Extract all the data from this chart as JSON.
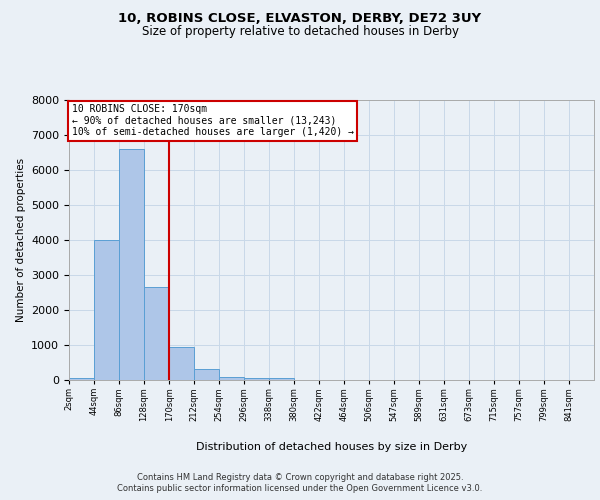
{
  "title_line1": "10, ROBINS CLOSE, ELVASTON, DERBY, DE72 3UY",
  "title_line2": "Size of property relative to detached houses in Derby",
  "xlabel": "Distribution of detached houses by size in Derby",
  "ylabel": "Number of detached properties",
  "bar_edges": [
    2,
    44,
    86,
    128,
    170,
    212,
    254,
    296,
    338,
    380,
    422,
    464,
    506,
    547,
    589,
    631,
    673,
    715,
    757,
    799,
    841
  ],
  "bar_heights": [
    50,
    4000,
    6600,
    2650,
    950,
    320,
    100,
    60,
    50,
    0,
    0,
    0,
    0,
    0,
    0,
    0,
    0,
    0,
    0,
    0,
    0
  ],
  "bar_color": "#aec6e8",
  "bar_edgecolor": "#5a9fd4",
  "grid_color": "#c8d8e8",
  "property_line_x": 170,
  "annotation_text": "10 ROBINS CLOSE: 170sqm\n← 90% of detached houses are smaller (13,243)\n10% of semi-detached houses are larger (1,420) →",
  "annotation_box_color": "#ffffff",
  "annotation_box_edgecolor": "#cc0000",
  "property_line_color": "#cc0000",
  "ylim": [
    0,
    8000
  ],
  "yticks": [
    0,
    1000,
    2000,
    3000,
    4000,
    5000,
    6000,
    7000,
    8000
  ],
  "tick_labels": [
    "2sqm",
    "44sqm",
    "86sqm",
    "128sqm",
    "170sqm",
    "212sqm",
    "254sqm",
    "296sqm",
    "338sqm",
    "380sqm",
    "422sqm",
    "464sqm",
    "506sqm",
    "547sqm",
    "589sqm",
    "631sqm",
    "673sqm",
    "715sqm",
    "757sqm",
    "799sqm",
    "841sqm"
  ],
  "footer_line1": "Contains HM Land Registry data © Crown copyright and database right 2025.",
  "footer_line2": "Contains public sector information licensed under the Open Government Licence v3.0.",
  "bg_color": "#eaf0f6",
  "plot_bg_color": "#eaf0f6"
}
